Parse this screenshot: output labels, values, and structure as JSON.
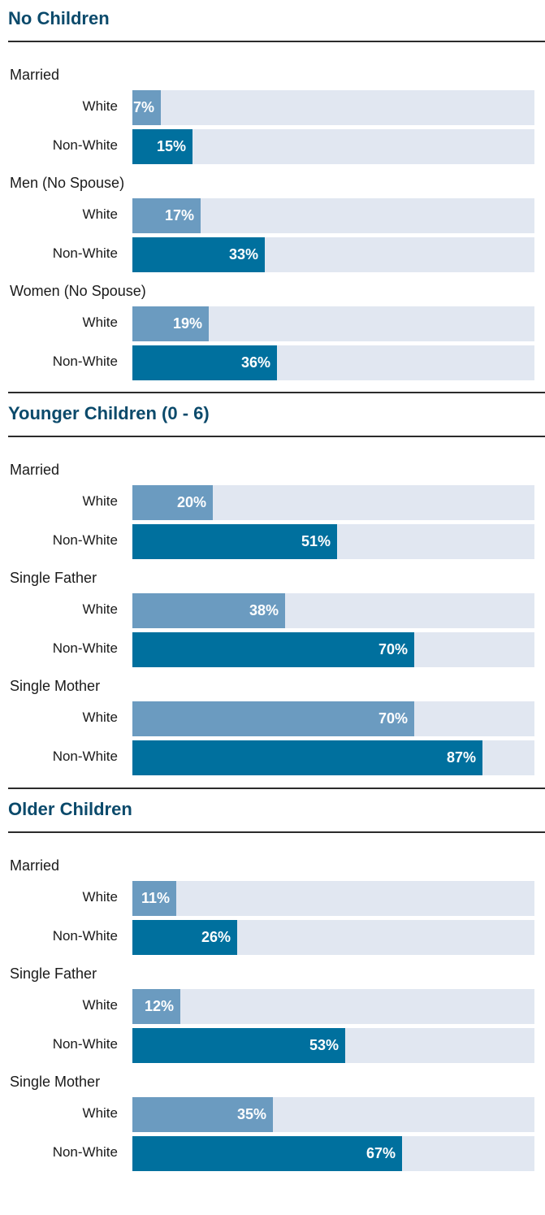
{
  "chart_data": {
    "type": "bar",
    "orientation": "horizontal",
    "xlim": [
      0,
      100
    ],
    "unit": "%",
    "colors": {
      "White": "#6b9bc0",
      "Non-White": "#00709e",
      "track": "#e1e7f1",
      "title": "#0b4a6b"
    },
    "sections": [
      {
        "title": "No Children",
        "groups": [
          {
            "label": "Married",
            "rows": [
              {
                "category": "White",
                "value": 7,
                "label": "7%"
              },
              {
                "category": "Non-White",
                "value": 15,
                "label": "15%"
              }
            ]
          },
          {
            "label": "Men (No Spouse)",
            "rows": [
              {
                "category": "White",
                "value": 17,
                "label": "17%"
              },
              {
                "category": "Non-White",
                "value": 33,
                "label": "33%"
              }
            ]
          },
          {
            "label": "Women (No Spouse)",
            "rows": [
              {
                "category": "White",
                "value": 19,
                "label": "19%"
              },
              {
                "category": "Non-White",
                "value": 36,
                "label": "36%"
              }
            ]
          }
        ]
      },
      {
        "title": "Younger Children (0 - 6)",
        "groups": [
          {
            "label": "Married",
            "rows": [
              {
                "category": "White",
                "value": 20,
                "label": "20%"
              },
              {
                "category": "Non-White",
                "value": 51,
                "label": "51%"
              }
            ]
          },
          {
            "label": "Single Father",
            "rows": [
              {
                "category": "White",
                "value": 38,
                "label": "38%"
              },
              {
                "category": "Non-White",
                "value": 70,
                "label": "70%"
              }
            ]
          },
          {
            "label": "Single Mother",
            "rows": [
              {
                "category": "White",
                "value": 70,
                "label": "70%"
              },
              {
                "category": "Non-White",
                "value": 87,
                "label": "87%"
              }
            ]
          }
        ]
      },
      {
        "title": "Older Children",
        "groups": [
          {
            "label": "Married",
            "rows": [
              {
                "category": "White",
                "value": 11,
                "label": "11%"
              },
              {
                "category": "Non-White",
                "value": 26,
                "label": "26%"
              }
            ]
          },
          {
            "label": "Single Father",
            "rows": [
              {
                "category": "White",
                "value": 12,
                "label": "12%"
              },
              {
                "category": "Non-White",
                "value": 53,
                "label": "53%"
              }
            ]
          },
          {
            "label": "Single Mother",
            "rows": [
              {
                "category": "White",
                "value": 35,
                "label": "35%"
              },
              {
                "category": "Non-White",
                "value": 67,
                "label": "67%"
              }
            ]
          }
        ]
      }
    ]
  }
}
